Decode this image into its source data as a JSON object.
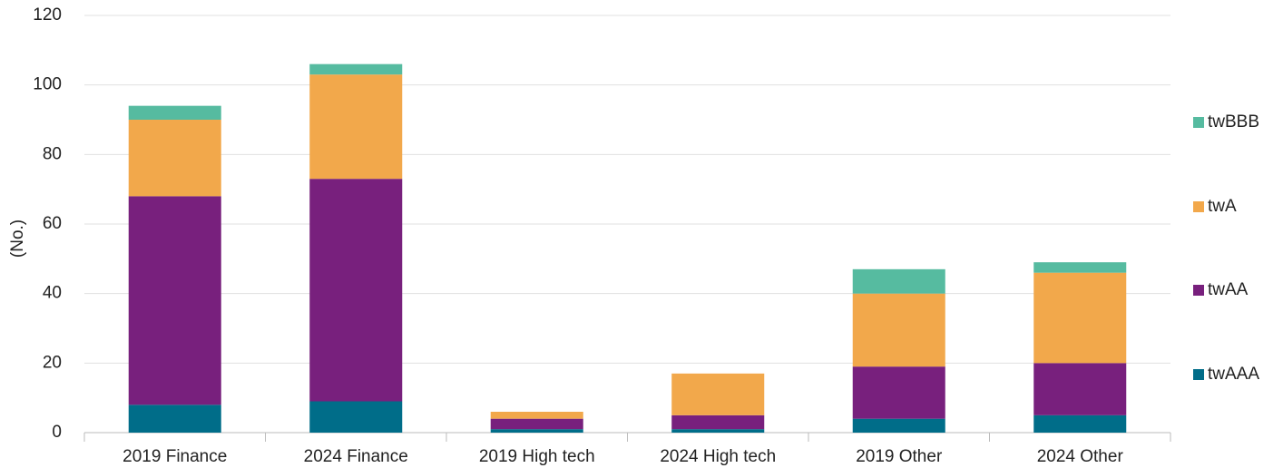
{
  "chart_data": {
    "type": "stacked_bar",
    "y_label": "(No.)",
    "categories": [
      "2019 Finance",
      "2024 Finance",
      "2019 High tech",
      "2024 High tech",
      "2019 Other",
      "2024 Other"
    ],
    "series": [
      {
        "name": "twAAA",
        "color": "#006d89",
        "values": [
          8,
          9,
          1,
          1,
          4,
          5
        ]
      },
      {
        "name": "twAA",
        "color": "#78207d",
        "values": [
          60,
          64,
          3,
          4,
          15,
          15
        ]
      },
      {
        "name": "twA",
        "color": "#f2a84b",
        "values": [
          22,
          30,
          2,
          12,
          21,
          26
        ]
      },
      {
        "name": "twBBB",
        "color": "#56bba0",
        "values": [
          4,
          3,
          0,
          0,
          7,
          3
        ]
      }
    ],
    "ylim": [
      0,
      120
    ],
    "yticks": [
      0,
      20,
      40,
      60,
      80,
      100,
      120
    ],
    "grid": true,
    "legend": "right"
  }
}
